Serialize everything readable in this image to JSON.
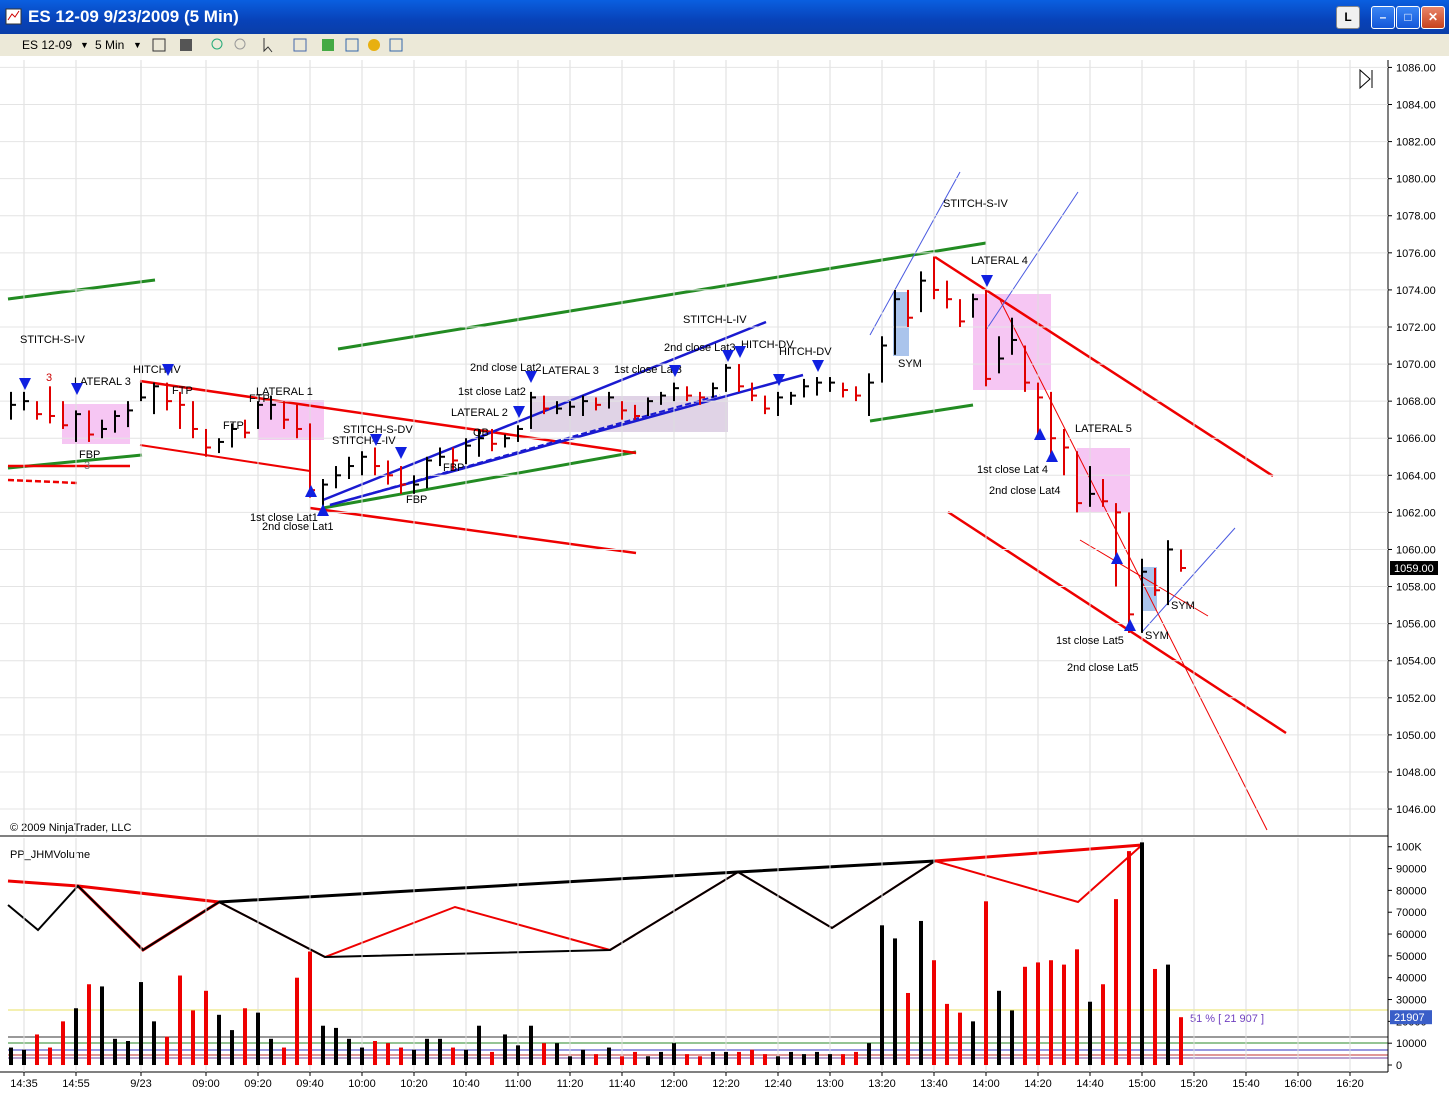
{
  "window": {
    "title": "ES 12-09  9/23/2009 (5 Min)",
    "button": "L"
  },
  "toolbar": {
    "instrument": "ES 12-09",
    "period": "5 Min"
  },
  "copyright": "© 2009 NinjaTrader, LLC",
  "annotations": [
    "STITCH-S-IV",
    "3",
    "LATERAL 3",
    "FBP",
    "3",
    "HITCH-IV",
    "FTP",
    "FTP",
    "LATERAL 1",
    "FTP",
    "1st close Lat1",
    "2nd close Lat1",
    "STITCH-S-DV",
    "STITCH-L-IV",
    "FBP",
    "FBP",
    "OB",
    "LATERAL 2",
    "1st close Lat2",
    "2nd close Lat2",
    "LATERAL 3",
    "1st close Lat3",
    "2nd close Lat3",
    "STITCH-L-IV",
    "HITCH-DV",
    "HITCH-DV",
    "SYM",
    "STITCH-S-IV",
    "LATERAL 4",
    "1st close Lat 4",
    "2nd close Lat4",
    "LATERAL 5",
    "1st close Lat5",
    "2nd close Lat5",
    "SYM",
    "SYM"
  ],
  "chart_data": [
    {
      "type": "hlc",
      "up_color": "#000000",
      "down_color": "#e00000",
      "high": [
        1068.5,
        1068.5,
        1068,
        1068.8,
        1068,
        1067.5,
        1067.5,
        1067,
        1067.5,
        1068,
        1069,
        1069,
        1069,
        1068.5,
        1068,
        1066.5,
        1066,
        1066.8,
        1067,
        1068,
        1068.3,
        1068,
        1067.8,
        1066.8,
        1063.8,
        1064.5,
        1065,
        1065.3,
        1065.5,
        1064.8,
        1064.5,
        1064,
        1065,
        1065.5,
        1065.5,
        1066,
        1066.5,
        1066.5,
        1066.2,
        1066.7,
        1068.5,
        1068.3,
        1068,
        1068,
        1068.3,
        1068.2,
        1068.5,
        1068,
        1067.8,
        1068.2,
        1068.5,
        1069,
        1068.8,
        1068.5,
        1069,
        1070,
        1070,
        1069,
        1068.3,
        1068.5,
        1068.5,
        1069.2,
        1069.3,
        1069.3,
        1069,
        1068.8,
        1069.5,
        1071.5,
        1074,
        1074,
        1075,
        1075.8,
        1074.5,
        1073.5,
        1073.8,
        1074,
        1071.5,
        1072.5,
        1071,
        1069,
        1068.5,
        1066.5,
        1065.3,
        1064.5,
        1063.8,
        1062.5,
        1062,
        1059.5,
        1059,
        1060.5,
        1060,
        null,
        null,
        null,
        null,
        null,
        null,
        null,
        null,
        null,
        null,
        null,
        null,
        null,
        null,
        null
      ],
      "low": [
        1067,
        1067.5,
        1067,
        1066.8,
        1066.5,
        1065.8,
        1065.8,
        1066,
        1066.3,
        1066.6,
        1068,
        1067.3,
        1067.5,
        1066.5,
        1066,
        1065,
        1065.2,
        1065.5,
        1066,
        1066.5,
        1067,
        1066.5,
        1066,
        1062.8,
        1062.3,
        1063.3,
        1063.8,
        1064,
        1064,
        1063.5,
        1063,
        1063,
        1063.3,
        1064.5,
        1064.3,
        1064.6,
        1065,
        1065.3,
        1065.5,
        1065.8,
        1066.5,
        1067.3,
        1067.3,
        1067.2,
        1067.2,
        1067.5,
        1067.6,
        1067,
        1067,
        1067.2,
        1067.8,
        1068,
        1068,
        1067.8,
        1068.2,
        1068.5,
        1068.5,
        1068,
        1067.3,
        1067.2,
        1067.8,
        1068.2,
        1068.3,
        1068.5,
        1068.2,
        1068,
        1067.2,
        1069,
        1070.5,
        1072,
        1072.8,
        1073.5,
        1073,
        1072,
        1072.5,
        1068.8,
        1069.5,
        1070.5,
        1068.5,
        1066,
        1065,
        1064,
        1062,
        1062.3,
        1062.3,
        1058,
        1055.5,
        1055.5,
        1057.5,
        1057,
        1058.8,
        null,
        null,
        null,
        null,
        null,
        null,
        null,
        null,
        null,
        null,
        null,
        null,
        null,
        null,
        null
      ],
      "close": [
        1067.8,
        1068,
        1067.3,
        1067.2,
        1066.7,
        1067.3,
        1066.2,
        1066.5,
        1067.2,
        1067.5,
        1068.2,
        1068.8,
        1068,
        1067.8,
        1066.5,
        1065.5,
        1065.8,
        1066.5,
        1066.3,
        1067.8,
        1067.8,
        1067,
        1066.5,
        1063.2,
        1063.5,
        1064,
        1064.5,
        1065,
        1064.5,
        1064,
        1063.5,
        1063.5,
        1064.8,
        1065,
        1064.8,
        1065.6,
        1066,
        1065.7,
        1066,
        1066.5,
        1068.2,
        1067.6,
        1067.6,
        1067.7,
        1068,
        1067.8,
        1068.2,
        1067.5,
        1067.2,
        1068,
        1068.3,
        1068.7,
        1068.3,
        1068.2,
        1068.7,
        1069.8,
        1068.8,
        1068.3,
        1067.6,
        1068.2,
        1068.3,
        1068.8,
        1069,
        1069,
        1068.6,
        1068.3,
        1069,
        1071,
        1073.5,
        1072.5,
        1074.5,
        1074,
        1073.5,
        1072.3,
        1073.5,
        1069.2,
        1070.3,
        1071.3,
        1069,
        1068.2,
        1066,
        1065.5,
        1062.5,
        1063,
        1062.6,
        1062,
        1056.5,
        1058.8,
        1057.8,
        1060,
        1059,
        null,
        null,
        null,
        null,
        null,
        null,
        null,
        null,
        null,
        null,
        null,
        null,
        null,
        null,
        null
      ],
      "last_price_label": "1059.00",
      "ylim": [
        1044.6,
        1086.4
      ],
      "yticks": [
        {
          "value": 1046,
          "label": "1046.00"
        },
        {
          "value": 1048,
          "label": "1048.00"
        },
        {
          "value": 1050,
          "label": "1050.00"
        },
        {
          "value": 1052,
          "label": "1052.00"
        },
        {
          "value": 1054,
          "label": "1054.00"
        },
        {
          "value": 1056,
          "label": "1056.00"
        },
        {
          "value": 1058,
          "label": "1058.00"
        },
        {
          "value": 1060,
          "label": "1060.00"
        },
        {
          "value": 1062,
          "label": "1062.00"
        },
        {
          "value": 1064,
          "label": "1064.00"
        },
        {
          "value": 1066,
          "label": "1066.00"
        },
        {
          "value": 1068,
          "label": "1068.00"
        },
        {
          "value": 1070,
          "label": "1070.00"
        },
        {
          "value": 1072,
          "label": "1072.00"
        },
        {
          "value": 1074,
          "label": "1074.00"
        },
        {
          "value": 1076,
          "label": "1076.00"
        },
        {
          "value": 1078,
          "label": "1078.00"
        },
        {
          "value": 1080,
          "label": "1080.00"
        },
        {
          "value": 1082,
          "label": "1082.00"
        },
        {
          "value": 1084,
          "label": "1084.00"
        },
        {
          "value": 1086,
          "label": "1086.00"
        }
      ],
      "grid": true
    },
    {
      "type": "bar",
      "title": "PP_JHMVolume",
      "average_label": "51 % [ 21 907 ]",
      "categories": [
        null,
        "14:35",
        null,
        null,
        null,
        "14:55",
        null,
        null,
        null,
        null,
        "9/23",
        null,
        null,
        null,
        null,
        "09:00",
        null,
        null,
        null,
        "09:20",
        null,
        null,
        null,
        "09:40",
        null,
        null,
        null,
        "10:00",
        null,
        null,
        null,
        "10:20",
        null,
        null,
        null,
        "10:40",
        null,
        null,
        null,
        "11:00",
        null,
        null,
        null,
        "11:20",
        null,
        null,
        null,
        "11:40",
        null,
        null,
        null,
        "12:00",
        null,
        null,
        null,
        "12:20",
        null,
        null,
        null,
        "12:40",
        null,
        null,
        null,
        "13:00",
        null,
        null,
        null,
        "13:20",
        null,
        null,
        null,
        "13:40",
        null,
        null,
        null,
        "14:00",
        null,
        null,
        null,
        "14:20",
        null,
        null,
        null,
        "14:40",
        null,
        null,
        null,
        "15:00",
        null,
        null,
        null,
        "15:20",
        null,
        null,
        null,
        "15:40",
        null,
        null,
        null,
        "16:00",
        null,
        null,
        null,
        "16:20",
        null,
        null
      ],
      "values": [
        8000,
        7000,
        14000,
        8000,
        20000,
        26000,
        37000,
        36000,
        12000,
        11000,
        38000,
        20000,
        13000,
        41000,
        25000,
        34000,
        23000,
        16000,
        26000,
        24000,
        12000,
        8000,
        40000,
        52000,
        18000,
        17000,
        12000,
        8000,
        11000,
        10000,
        8000,
        7000,
        12000,
        12000,
        8000,
        7000,
        18000,
        6000,
        14000,
        9000,
        18000,
        10000,
        10000,
        4000,
        7000,
        5000,
        8000,
        4000,
        6000,
        4000,
        6000,
        10000,
        5000,
        4000,
        6000,
        6000,
        6000,
        7000,
        5000,
        4000,
        6000,
        5000,
        6000,
        5000,
        5000,
        6000,
        10000,
        64000,
        58000,
        33000,
        66000,
        48000,
        28000,
        24000,
        20000,
        75000,
        34000,
        25000,
        45000,
        47000,
        48000,
        46000,
        53000,
        29000,
        37000,
        76000,
        98000,
        102000,
        44000,
        46000,
        21907,
        null,
        null,
        null,
        null,
        null,
        null,
        null,
        null,
        null,
        null,
        null,
        null,
        null,
        null,
        null
      ],
      "ylim": [
        -3200,
        104000
      ],
      "yticks": [
        0,
        10000,
        20000,
        30000,
        40000,
        50000,
        60000,
        70000,
        80000,
        90000,
        {
          "value": 100000,
          "label": "100K"
        }
      ],
      "grid": true
    }
  ]
}
